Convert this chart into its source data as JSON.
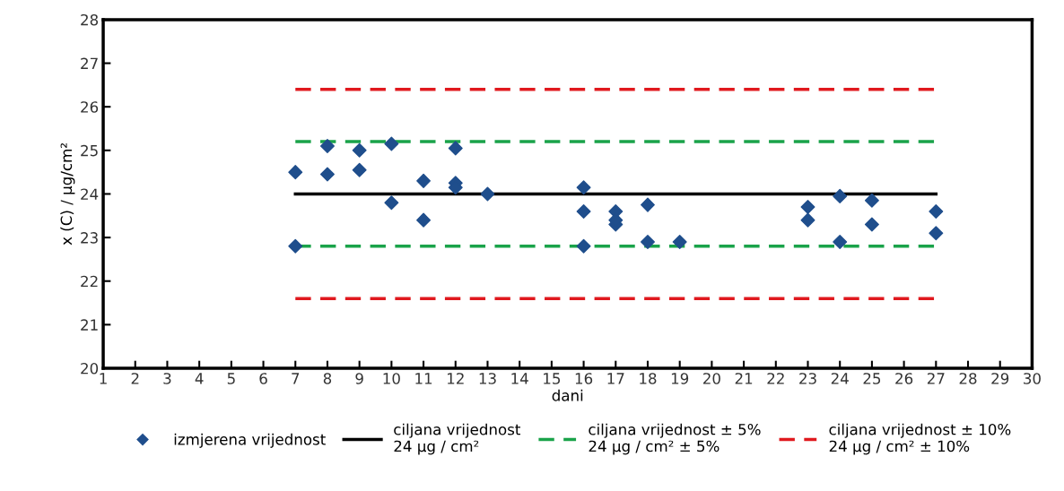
{
  "chart_data": {
    "type": "scatter",
    "xlabel": "dani",
    "ylabel": "x (C) / µg/cm²",
    "xlim": [
      1,
      30
    ],
    "xticks": [
      1,
      2,
      3,
      4,
      5,
      6,
      7,
      8,
      9,
      10,
      11,
      12,
      13,
      14,
      15,
      16,
      17,
      18,
      19,
      20,
      21,
      22,
      23,
      24,
      25,
      26,
      27,
      28,
      29,
      30
    ],
    "ylim": [
      20,
      28
    ],
    "yticks": [
      20,
      21,
      22,
      23,
      24,
      25,
      26,
      27,
      28
    ],
    "grid": false,
    "legend": "bottom",
    "series": [
      {
        "name": "izmjerena vrijednost",
        "marker": "diamond",
        "color": "#1f4e8c",
        "x": [
          7,
          7,
          8,
          8,
          9,
          9,
          10,
          10,
          11,
          11,
          12,
          12,
          12,
          13,
          16,
          16,
          16,
          17,
          17,
          17,
          18,
          18,
          19,
          23,
          23,
          24,
          24,
          25,
          25,
          27,
          27
        ],
        "values": [
          24.5,
          22.8,
          25.1,
          24.45,
          25.0,
          24.55,
          25.15,
          23.8,
          24.3,
          23.4,
          25.05,
          24.25,
          24.15,
          24.0,
          24.15,
          23.6,
          22.8,
          23.6,
          23.3,
          23.4,
          23.75,
          22.9,
          22.9,
          23.7,
          23.4,
          23.95,
          22.9,
          23.85,
          23.3,
          23.6,
          23.1
        ]
      },
      {
        "name": "ciljana vrijednost\n24 µg / cm²",
        "type": "line",
        "line_style": "solid",
        "color": "#000000",
        "x": [
          7,
          27
        ],
        "values": [
          24,
          24
        ]
      },
      {
        "name": "ciljana vrijednost ± 5%\n24 µg / cm² ± 5%",
        "type": "line",
        "line_style": "dashed",
        "color": "#1aa34a",
        "x": [
          7,
          27
        ],
        "values": [
          25.2,
          25.2
        ]
      },
      {
        "type": "line",
        "line_style": "dashed",
        "color": "#1aa34a",
        "x": [
          7,
          27
        ],
        "values": [
          22.8,
          22.8
        ]
      },
      {
        "name": "ciljana vrijednost ± 10%\n24 µg / cm² ± 10%",
        "type": "line",
        "line_style": "dashed",
        "color": "#e0191e",
        "x": [
          7,
          27
        ],
        "values": [
          26.4,
          26.4
        ]
      },
      {
        "type": "line",
        "line_style": "dashed",
        "color": "#e0191e",
        "x": [
          7,
          27
        ],
        "values": [
          21.6,
          21.6
        ]
      }
    ]
  }
}
